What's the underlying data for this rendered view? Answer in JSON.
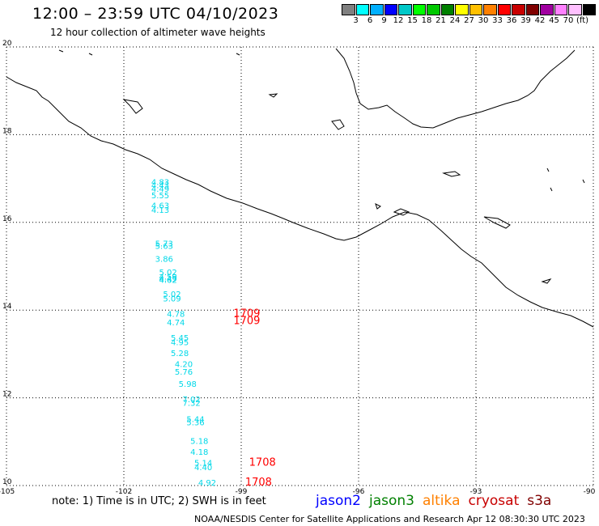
{
  "header": {
    "title": "12:00 – 23:59 UTC 04/10/2023",
    "subtitle": "12 hour collection of altimeter wave heights"
  },
  "legend": {
    "colors": [
      "#808080",
      "#00ffff",
      "#00b0ff",
      "#0000ff",
      "#00c8c8",
      "#00ff00",
      "#00c800",
      "#008000",
      "#ffff00",
      "#ffc000",
      "#ff8000",
      "#ff0000",
      "#c80000",
      "#800000",
      "#a000a0",
      "#ff80ff",
      "#ffc0ff",
      "#000000"
    ],
    "labels": [
      "3",
      "6",
      "9",
      "12",
      "15",
      "18",
      "21",
      "24",
      "27",
      "30",
      "33",
      "36",
      "39",
      "42",
      "45",
      "70",
      "(ft)"
    ]
  },
  "map": {
    "lon_range": [
      -105,
      -90
    ],
    "lat_range": [
      10,
      20
    ],
    "lon_ticks": [
      "-105",
      "-102",
      "-99",
      "-96",
      "-93",
      "-90"
    ],
    "lat_ticks": [
      "20",
      "18",
      "16",
      "14",
      "12",
      "10"
    ],
    "grid": true
  },
  "observations": {
    "jason3": [
      {
        "lon": -101.3,
        "lat": 16.85,
        "label": "4.83"
      },
      {
        "lon": -101.3,
        "lat": 16.78,
        "label": "4.43"
      },
      {
        "lon": -101.3,
        "lat": 16.7,
        "label": "4.49"
      },
      {
        "lon": -101.3,
        "lat": 16.55,
        "label": "5.55"
      },
      {
        "lon": -101.3,
        "lat": 16.32,
        "label": "4.63"
      },
      {
        "lon": -101.3,
        "lat": 16.22,
        "label": "4.13"
      },
      {
        "lon": -101.2,
        "lat": 15.45,
        "label": "5.73"
      },
      {
        "lon": -101.2,
        "lat": 15.4,
        "label": "5.63"
      },
      {
        "lon": -101.2,
        "lat": 15.1,
        "label": "3.86"
      },
      {
        "lon": -101.1,
        "lat": 14.8,
        "label": "5.02"
      },
      {
        "lon": -101.1,
        "lat": 14.7,
        "label": "4.59"
      },
      {
        "lon": -101.1,
        "lat": 14.65,
        "label": "4.49"
      },
      {
        "lon": -101.1,
        "lat": 14.62,
        "label": "4.62"
      },
      {
        "lon": -101.0,
        "lat": 14.3,
        "label": "5.02"
      },
      {
        "lon": -101.0,
        "lat": 14.2,
        "label": "5.09"
      },
      {
        "lon": -100.9,
        "lat": 13.85,
        "label": "4.78"
      },
      {
        "lon": -100.9,
        "lat": 13.65,
        "label": "4.74"
      },
      {
        "lon": -100.8,
        "lat": 13.3,
        "label": "5.45"
      },
      {
        "lon": -100.8,
        "lat": 13.2,
        "label": "4.95"
      },
      {
        "lon": -100.8,
        "lat": 12.95,
        "label": "5.28"
      },
      {
        "lon": -100.7,
        "lat": 12.7,
        "label": "4.20"
      },
      {
        "lon": -100.7,
        "lat": 12.53,
        "label": "5.76"
      },
      {
        "lon": -100.6,
        "lat": 12.25,
        "label": "5.98"
      },
      {
        "lon": -100.5,
        "lat": 11.9,
        "label": "7.02"
      },
      {
        "lon": -100.5,
        "lat": 11.82,
        "label": "7.32"
      },
      {
        "lon": -100.4,
        "lat": 11.45,
        "label": "5.44"
      },
      {
        "lon": -100.4,
        "lat": 11.37,
        "label": "5.36"
      },
      {
        "lon": -100.3,
        "lat": 10.95,
        "label": "5.18"
      },
      {
        "lon": -100.3,
        "lat": 10.7,
        "label": "4.18"
      },
      {
        "lon": -100.2,
        "lat": 10.45,
        "label": "5.14"
      },
      {
        "lon": -100.2,
        "lat": 10.35,
        "label": "4.40"
      },
      {
        "lon": -100.1,
        "lat": 10.0,
        "label": "4.92"
      }
    ],
    "cryosat": [
      {
        "lon": -99.2,
        "lat": 13.85,
        "label": "1709"
      },
      {
        "lon": -99.2,
        "lat": 13.68,
        "label": "1709"
      },
      {
        "lon": -98.8,
        "lat": 10.45,
        "label": "1708"
      },
      {
        "lon": -98.9,
        "lat": 10.0,
        "label": "1708"
      }
    ]
  },
  "footer": {
    "note": "note: 1) Time is in UTC; 2) SWH is in feet",
    "satellites": [
      {
        "name": "jason2",
        "color": "#0000ff"
      },
      {
        "name": "jason3",
        "color": "#008000"
      },
      {
        "name": "altika",
        "color": "#ff8000"
      },
      {
        "name": "cryosat",
        "color": "#c80000"
      },
      {
        "name": "s3a",
        "color": "#800000"
      }
    ],
    "credit": "NOAA/NESDIS Center for Satellite Applications and Research    Apr 12 08:30:30 UTC 2023"
  },
  "colors": {
    "jason3_text": "#00d8e8",
    "cryosat_text": "#ff0000"
  }
}
